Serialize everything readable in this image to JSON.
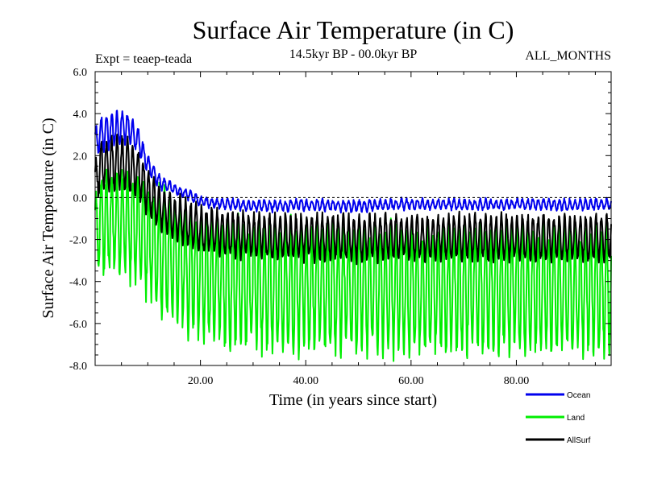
{
  "chart_data": {
    "type": "line",
    "title": "Surface Air Temperature (in C)",
    "subtitle": "14.5kyr BP - 00.0kyr BP",
    "experiment_label": "Expt = teaep-teada",
    "season_label": "ALL_MONTHS",
    "xlabel": "Time (in years since start)",
    "ylabel": "Surface Air Temperature (in C)",
    "xlim": [
      0,
      98
    ],
    "ylim": [
      -8.0,
      6.0
    ],
    "x_ticks": [
      20,
      40,
      60,
      80
    ],
    "x_tick_labels": [
      "20.00",
      "40.00",
      "60.00",
      "80.00"
    ],
    "y_ticks": [
      -8,
      -6,
      -4,
      -2,
      0,
      2,
      4,
      6
    ],
    "y_tick_labels": [
      "-8.0",
      "-6.0",
      "-4.0",
      "-2.0",
      "0.0",
      "2.0",
      "4.0",
      "6.0"
    ],
    "reference_line_y": 0.0,
    "legend_position": "bottom-right",
    "series": [
      {
        "name": "Ocean",
        "color": "#0000ee",
        "anchor_times": [
          0,
          1,
          3,
          6,
          8,
          10,
          12,
          15,
          18,
          20,
          25,
          30,
          40,
          50,
          60,
          70,
          80,
          90,
          98
        ],
        "anchor_means": [
          2.5,
          3.0,
          3.2,
          3.4,
          2.8,
          1.6,
          0.8,
          0.4,
          0.1,
          -0.2,
          -0.3,
          -0.4,
          -0.35,
          -0.4,
          -0.3,
          -0.35,
          -0.3,
          -0.35,
          -0.3
        ],
        "anchor_amplitudes": [
          0.7,
          0.8,
          0.8,
          0.7,
          0.6,
          0.4,
          0.3,
          0.2,
          0.2,
          0.2,
          0.22,
          0.22,
          0.22,
          0.22,
          0.22,
          0.22,
          0.22,
          0.22,
          0.22
        ]
      },
      {
        "name": "Land",
        "color": "#00ee00",
        "anchor_times": [
          0,
          1,
          3,
          6,
          8,
          10,
          12,
          15,
          18,
          20,
          25,
          30,
          40,
          50,
          60,
          70,
          80,
          90,
          98
        ],
        "anchor_means": [
          -2.0,
          -1.2,
          -1.0,
          -1.2,
          -1.5,
          -2.0,
          -2.5,
          -3.0,
          -3.5,
          -3.8,
          -4.0,
          -4.2,
          -4.3,
          -4.3,
          -4.4,
          -4.4,
          -4.3,
          -4.4,
          -4.3
        ],
        "anchor_amplitudes": [
          1.8,
          2.2,
          2.4,
          2.4,
          2.5,
          2.6,
          2.7,
          2.8,
          2.8,
          2.8,
          2.8,
          2.8,
          2.8,
          2.8,
          2.8,
          2.8,
          2.8,
          2.8,
          2.8
        ]
      },
      {
        "name": "AllSurf",
        "color": "#000000",
        "anchor_times": [
          0,
          1,
          3,
          6,
          8,
          10,
          12,
          15,
          18,
          20,
          25,
          30,
          40,
          50,
          60,
          70,
          80,
          90,
          98
        ],
        "anchor_means": [
          0.7,
          1.5,
          1.6,
          1.6,
          1.2,
          0.3,
          -0.4,
          -0.9,
          -1.3,
          -1.5,
          -1.7,
          -1.8,
          -1.9,
          -1.9,
          -1.9,
          -1.9,
          -1.9,
          -1.9,
          -1.9
        ],
        "anchor_amplitudes": [
          0.9,
          1.1,
          1.2,
          1.2,
          1.1,
          1.0,
          1.0,
          1.0,
          1.0,
          1.0,
          1.0,
          1.0,
          1.0,
          1.0,
          1.0,
          1.0,
          1.0,
          1.0,
          1.0
        ]
      }
    ]
  }
}
